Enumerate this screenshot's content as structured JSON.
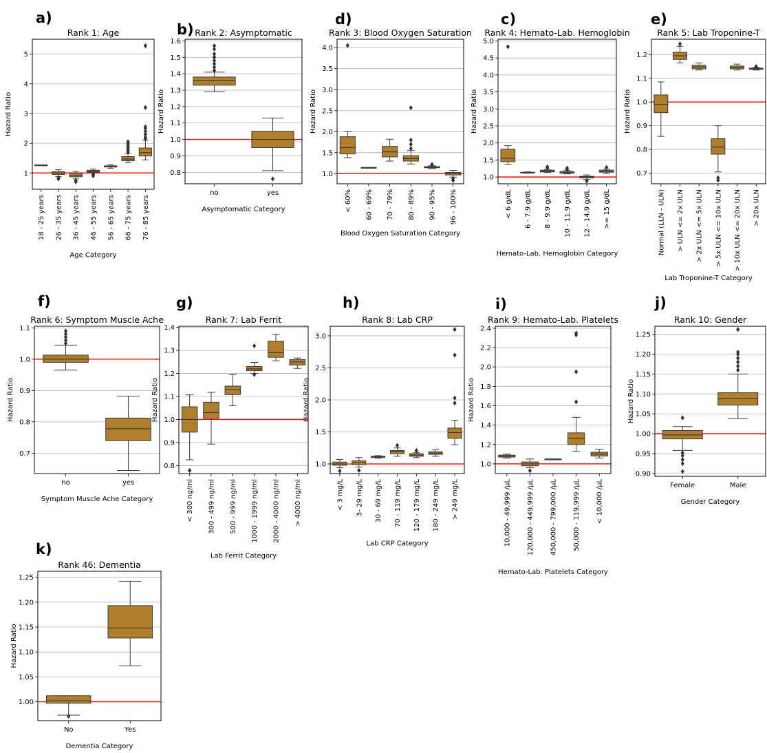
{
  "figure": {
    "colors": {
      "box": "#b07f2c",
      "whisker": "#3a3a3a",
      "reference": "#ff0000",
      "grid": "#b0b0b0"
    },
    "ylabel": "Hazard Ratio"
  },
  "chart_data": [
    {
      "type": "box",
      "letter": "a)",
      "title": "Rank 1: Age",
      "xlabel": "Age Category",
      "ylabel": "Hazard Ratio",
      "ylim": [
        0.45,
        5.5
      ],
      "yticks": [
        1,
        2,
        3,
        4,
        5
      ],
      "ytick_labels": [
        "1",
        "2",
        "3",
        "4",
        "5"
      ],
      "reference_line": 1.0,
      "categories": [
        "18 - 25 years",
        "26 - 35 years",
        "36 - 45 years",
        "46 - 55 years",
        "56 - 65 years",
        "66 - 75 years",
        "76 - 85 years"
      ],
      "boxes": [
        {
          "whislo": 1.25,
          "q1": 1.25,
          "med": 1.26,
          "q3": 1.27,
          "whishi": 1.27,
          "fliers": []
        },
        {
          "whislo": 0.88,
          "q1": 0.95,
          "med": 1.0,
          "q3": 1.04,
          "whishi": 1.11,
          "fliers": [
            0.8,
            0.83
          ]
        },
        {
          "whislo": 0.8,
          "q1": 0.87,
          "med": 0.92,
          "q3": 0.99,
          "whishi": 1.05,
          "fliers": [
            0.7,
            0.74
          ]
        },
        {
          "whislo": 1.0,
          "q1": 1.03,
          "med": 1.06,
          "q3": 1.09,
          "whishi": 1.13,
          "fliers": [
            0.9,
            0.95
          ]
        },
        {
          "whislo": 1.16,
          "q1": 1.2,
          "med": 1.22,
          "q3": 1.24,
          "whishi": 1.27,
          "fliers": []
        },
        {
          "whislo": 1.35,
          "q1": 1.41,
          "med": 1.47,
          "q3": 1.55,
          "whishi": 1.65,
          "fliers": [
            1.7,
            1.75,
            1.8,
            1.85,
            1.9,
            1.95,
            2.0,
            2.05
          ]
        },
        {
          "whislo": 1.44,
          "q1": 1.57,
          "med": 1.68,
          "q3": 1.84,
          "whishi": 2.1,
          "fliers": [
            2.15,
            2.2,
            2.3,
            2.4,
            2.5,
            2.55,
            3.2,
            5.28
          ]
        }
      ]
    },
    {
      "type": "box",
      "letter": "b)",
      "title": "Rank 2: Asymptomatic",
      "xlabel": "Asymptomatic Category",
      "ylabel": "Hazard Ratio",
      "ylim": [
        0.73,
        1.61
      ],
      "yticks": [
        0.8,
        0.9,
        1.0,
        1.1,
        1.2,
        1.3,
        1.4,
        1.5,
        1.6
      ],
      "ytick_labels": [
        "0.8",
        "0.9",
        "1.0",
        "1.1",
        "1.2",
        "1.3",
        "1.4",
        "1.5",
        "1.6"
      ],
      "reference_line": 1.0,
      "categories": [
        "no",
        "yes"
      ],
      "boxes": [
        {
          "whislo": 1.29,
          "q1": 1.33,
          "med": 1.36,
          "q3": 1.38,
          "whishi": 1.41,
          "fliers": [
            1.42,
            1.44,
            1.46,
            1.48,
            1.5,
            1.52,
            1.55,
            1.57
          ]
        },
        {
          "whislo": 0.81,
          "q1": 0.95,
          "med": 1.0,
          "q3": 1.05,
          "whishi": 1.13,
          "fliers": [
            0.76
          ]
        }
      ]
    },
    {
      "type": "box",
      "letter": "d)",
      "title": "Rank 3: Blood Oxygen Saturation",
      "xlabel": "Blood Oxygen Saturation Category",
      "ylabel": "Hazard Ratio",
      "ylim": [
        0.76,
        4.2
      ],
      "yticks": [
        1.0,
        1.5,
        2.0,
        2.5,
        3.0,
        3.5,
        4.0
      ],
      "ytick_labels": [
        "1.0",
        "1.5",
        "2.0",
        "2.5",
        "3.0",
        "3.5",
        "4.0"
      ],
      "reference_line": 1.0,
      "categories": [
        "< 60%",
        "60 - 69%",
        "70 - 79%",
        "80 - 89%",
        "90 - 95%",
        "96 - 100%"
      ],
      "boxes": [
        {
          "whislo": 1.38,
          "q1": 1.47,
          "med": 1.62,
          "q3": 1.88,
          "whishi": 2.0,
          "fliers": [
            4.05
          ]
        },
        {
          "whislo": 1.13,
          "q1": 1.13,
          "med": 1.14,
          "q3": 1.15,
          "whishi": 1.15,
          "fliers": []
        },
        {
          "whislo": 1.3,
          "q1": 1.4,
          "med": 1.52,
          "q3": 1.65,
          "whishi": 1.82,
          "fliers": []
        },
        {
          "whislo": 1.23,
          "q1": 1.3,
          "med": 1.36,
          "q3": 1.43,
          "whishi": 1.55,
          "fliers": [
            1.6,
            1.7,
            1.8,
            2.57
          ]
        },
        {
          "whislo": 1.12,
          "q1": 1.14,
          "med": 1.15,
          "q3": 1.17,
          "whishi": 1.19,
          "fliers": [
            1.22
          ]
        },
        {
          "whislo": 0.92,
          "q1": 0.97,
          "med": 1.0,
          "q3": 1.03,
          "whishi": 1.08,
          "fliers": [
            0.84,
            0.88
          ]
        }
      ]
    },
    {
      "type": "box",
      "letter": "c)",
      "title": "Rank 4: Hemato-Lab. Hemoglobin",
      "xlabel": "Hemato-Lab. Hemoglobin Category",
      "ylabel": "Hazard Ratio",
      "ylim": [
        0.8,
        5.05
      ],
      "yticks": [
        1.0,
        1.5,
        2.0,
        2.5,
        3.0,
        3.5,
        4.0,
        4.5,
        5.0
      ],
      "ytick_labels": [
        "1.0",
        "1.5",
        "2.0",
        "2.5",
        "3.0",
        "3.5",
        "4.0",
        "4.5",
        "5.0"
      ],
      "reference_line": 1.0,
      "categories": [
        "< 6 g/dL",
        "6 - 7.9 g/dL",
        "8 - 9.9 g/dL",
        "10 - 11.9 g/dL",
        "12 - 14.9 g/dL",
        ">= 15 g/dL"
      ],
      "boxes": [
        {
          "whislo": 1.37,
          "q1": 1.45,
          "med": 1.55,
          "q3": 1.82,
          "whishi": 1.92,
          "fliers": [
            4.83
          ]
        },
        {
          "whislo": 1.11,
          "q1": 1.12,
          "med": 1.13,
          "q3": 1.14,
          "whishi": 1.15,
          "fliers": []
        },
        {
          "whislo": 1.13,
          "q1": 1.15,
          "med": 1.17,
          "q3": 1.2,
          "whishi": 1.22,
          "fliers": [
            1.27,
            1.3
          ]
        },
        {
          "whislo": 1.09,
          "q1": 1.11,
          "med": 1.13,
          "q3": 1.16,
          "whishi": 1.19,
          "fliers": [
            1.22,
            1.26
          ]
        },
        {
          "whislo": 0.93,
          "q1": 0.97,
          "med": 1.0,
          "q3": 1.02,
          "whishi": 1.06,
          "fliers": [
            0.88
          ]
        },
        {
          "whislo": 1.1,
          "q1": 1.14,
          "med": 1.17,
          "q3": 1.2,
          "whishi": 1.23,
          "fliers": [
            1.28
          ]
        }
      ]
    },
    {
      "type": "box",
      "letter": "e)",
      "title": "Rank 5: Lab Troponine-T",
      "xlabel": "Lab Troponine-T Category",
      "ylabel": "Hazard Ratio",
      "ylim": [
        0.655,
        1.265
      ],
      "yticks": [
        0.7,
        0.8,
        0.9,
        1.0,
        1.1,
        1.2
      ],
      "ytick_labels": [
        "0.7",
        "0.8",
        "0.9",
        "1.0",
        "1.1",
        "1.2"
      ],
      "reference_line": 1.0,
      "categories": [
        "Normal  (LLN - ULN)",
        "> ULN <= 2x ULN",
        "> 2x ULN <= 5x ULN",
        "> 5x ULN <= 10x ULN",
        "> 10x ULN <= 20x ULN",
        "> 20x ULN"
      ],
      "boxes": [
        {
          "whislo": 0.855,
          "q1": 0.955,
          "med": 0.99,
          "q3": 1.03,
          "whishi": 1.085,
          "fliers": []
        },
        {
          "whislo": 1.165,
          "q1": 1.18,
          "med": 1.195,
          "q3": 1.21,
          "whishi": 1.235,
          "fliers": [
            1.245
          ]
        },
        {
          "whislo": 1.135,
          "q1": 1.14,
          "med": 1.148,
          "q3": 1.155,
          "whishi": 1.165,
          "fliers": []
        },
        {
          "whislo": 0.705,
          "q1": 0.78,
          "med": 0.81,
          "q3": 0.845,
          "whishi": 0.9,
          "fliers": [
            0.67,
            0.68
          ]
        },
        {
          "whislo": 1.135,
          "q1": 1.14,
          "med": 1.145,
          "q3": 1.152,
          "whishi": 1.16,
          "fliers": []
        },
        {
          "whislo": 1.135,
          "q1": 1.138,
          "med": 1.14,
          "q3": 1.143,
          "whishi": 1.146,
          "fliers": [
            1.15
          ]
        }
      ]
    },
    {
      "type": "box",
      "letter": "f)",
      "title": "Rank 6: Symptom Muscle Ache",
      "xlabel": "Symptom Muscle Ache Category",
      "ylabel": "Hazard Ratio",
      "ylim": [
        0.635,
        1.105
      ],
      "yticks": [
        0.7,
        0.8,
        0.9,
        1.0,
        1.1
      ],
      "ytick_labels": [
        "0.7",
        "0.8",
        "0.9",
        "1.0",
        "1.1"
      ],
      "reference_line": 1.0,
      "categories": [
        "no",
        "yes"
      ],
      "boxes": [
        {
          "whislo": 0.965,
          "q1": 0.99,
          "med": 1.0,
          "q3": 1.013,
          "whishi": 1.045,
          "fliers": [
            1.05,
            1.06,
            1.07,
            1.08,
            1.09
          ]
        },
        {
          "whislo": 0.645,
          "q1": 0.74,
          "med": 0.778,
          "q3": 0.812,
          "whishi": 0.882,
          "fliers": []
        }
      ]
    },
    {
      "type": "box",
      "letter": "g)",
      "title": "Rank 7: Lab Ferrit",
      "xlabel": "Lab Ferrit Category",
      "ylabel": "Hazard Ratio",
      "ylim": [
        0.765,
        1.405
      ],
      "yticks": [
        0.8,
        0.9,
        1.0,
        1.1,
        1.2,
        1.3,
        1.4
      ],
      "ytick_labels": [
        "0.8",
        "0.9",
        "1.0",
        "1.1",
        "1.2",
        "1.3",
        "1.4"
      ],
      "reference_line": 1.0,
      "categories": [
        "< 300 ng/ml",
        "300 - 499 ng/ml",
        "500 - 999 ng/ml",
        "1000 - 1999 ng/ml",
        "2000 - 4000 ng/ml",
        "> 4000 ng/ml"
      ],
      "boxes": [
        {
          "whislo": 0.825,
          "q1": 0.945,
          "med": 1.0,
          "q3": 1.055,
          "whishi": 1.107,
          "fliers": [
            0.778
          ]
        },
        {
          "whislo": 0.893,
          "q1": 1.005,
          "med": 1.03,
          "q3": 1.075,
          "whishi": 1.118,
          "fliers": []
        },
        {
          "whislo": 1.06,
          "q1": 1.108,
          "med": 1.13,
          "q3": 1.145,
          "whishi": 1.195,
          "fliers": []
        },
        {
          "whislo": 1.2,
          "q1": 1.212,
          "med": 1.22,
          "q3": 1.23,
          "whishi": 1.248,
          "fliers": [
            1.195,
            1.32
          ]
        },
        {
          "whislo": 1.255,
          "q1": 1.27,
          "med": 1.29,
          "q3": 1.34,
          "whishi": 1.37,
          "fliers": []
        },
        {
          "whislo": 1.222,
          "q1": 1.237,
          "med": 1.25,
          "q3": 1.26,
          "whishi": 1.267,
          "fliers": []
        }
      ]
    },
    {
      "type": "box",
      "letter": "h)",
      "title": "Rank 8: Lab CRP",
      "xlabel": "Lab CRP Category",
      "ylabel": "Hazard Ratio",
      "ylim": [
        0.85,
        3.15
      ],
      "yticks": [
        1.0,
        1.5,
        2.0,
        2.5,
        3.0
      ],
      "ytick_labels": [
        "1.0",
        "1.5",
        "2.0",
        "2.5",
        "3.0"
      ],
      "reference_line": 1.0,
      "categories": [
        "< 3 mg/L",
        "3- 29 mg/L",
        "30 - 69 mg/L",
        "70 - 119 mg/L",
        "120 - 179 mg/L",
        "180 - 249 mg/L",
        "> 249 mg/L"
      ],
      "boxes": [
        {
          "whislo": 0.94,
          "q1": 0.98,
          "med": 1.0,
          "q3": 1.03,
          "whishi": 1.07,
          "fliers": [
            0.89
          ]
        },
        {
          "whislo": 0.95,
          "q1": 0.99,
          "med": 1.02,
          "q3": 1.05,
          "whishi": 1.1,
          "fliers": [
            0.9
          ]
        },
        {
          "whislo": 1.09,
          "q1": 1.1,
          "med": 1.11,
          "q3": 1.12,
          "whishi": 1.13,
          "fliers": []
        },
        {
          "whislo": 1.12,
          "q1": 1.16,
          "med": 1.19,
          "q3": 1.21,
          "whishi": 1.25,
          "fliers": [
            1.29
          ]
        },
        {
          "whislo": 1.1,
          "q1": 1.12,
          "med": 1.14,
          "q3": 1.16,
          "whishi": 1.18,
          "fliers": [
            1.21
          ]
        },
        {
          "whislo": 1.12,
          "q1": 1.15,
          "med": 1.17,
          "q3": 1.19,
          "whishi": 1.22,
          "fliers": []
        },
        {
          "whislo": 1.3,
          "q1": 1.4,
          "med": 1.49,
          "q3": 1.56,
          "whishi": 1.68,
          "fliers": [
            1.95,
            2.03,
            2.7,
            3.1
          ]
        }
      ]
    },
    {
      "type": "box",
      "letter": "i)",
      "title": "Rank 9: Hemato-Lab. Platelets",
      "xlabel": "Hemato-Lab. Platelets Category",
      "ylabel": "Hazard Ratio",
      "ylim": [
        0.9,
        2.42
      ],
      "yticks": [
        1.0,
        1.2,
        1.4,
        1.6,
        1.8,
        2.0,
        2.2,
        2.4
      ],
      "ytick_labels": [
        "1.0",
        "1.2",
        "1.4",
        "1.6",
        "1.8",
        "2.0",
        "2.2",
        "2.4"
      ],
      "reference_line": 1.0,
      "categories": [
        "10,000 - 49,999 /µL",
        "120,000 - 449,999 /µL",
        "450,000 - 799,000 /µL",
        "50,000 - 119,999 /µL",
        "< 10,000 /µL"
      ],
      "boxes": [
        {
          "whislo": 1.06,
          "q1": 1.07,
          "med": 1.08,
          "q3": 1.09,
          "whishi": 1.1,
          "fliers": []
        },
        {
          "whislo": 0.96,
          "q1": 0.98,
          "med": 1.0,
          "q3": 1.02,
          "whishi": 1.05,
          "fliers": [
            0.93
          ]
        },
        {
          "whislo": 1.05,
          "q1": 1.05,
          "med": 1.05,
          "q3": 1.05,
          "whishi": 1.05,
          "fliers": []
        },
        {
          "whislo": 1.13,
          "q1": 1.2,
          "med": 1.26,
          "q3": 1.32,
          "whishi": 1.48,
          "fliers": [
            1.64,
            1.95,
            2.33,
            2.35
          ]
        },
        {
          "whislo": 1.06,
          "q1": 1.08,
          "med": 1.1,
          "q3": 1.12,
          "whishi": 1.15,
          "fliers": []
        }
      ]
    },
    {
      "type": "box",
      "letter": "j)",
      "title": "Rank 10: Gender",
      "xlabel": "Gender Category",
      "ylabel": "Hazard Ratio",
      "ylim": [
        0.893,
        1.27
      ],
      "yticks": [
        0.9,
        0.95,
        1.0,
        1.05,
        1.1,
        1.15,
        1.2,
        1.25
      ],
      "ytick_labels": [
        "0.90",
        "0.95",
        "1.00",
        "1.05",
        "1.10",
        "1.15",
        "1.20",
        "1.25"
      ],
      "reference_line": 1.0,
      "categories": [
        "Female",
        "Male"
      ],
      "boxes": [
        {
          "whislo": 0.958,
          "q1": 0.987,
          "med": 0.997,
          "q3": 1.008,
          "whishi": 1.018,
          "fliers": [
            0.905,
            0.925,
            0.935,
            0.945,
            0.952,
            1.04
          ]
        },
        {
          "whislo": 1.038,
          "q1": 1.072,
          "med": 1.088,
          "q3": 1.103,
          "whishi": 1.15,
          "fliers": [
            1.16,
            1.17,
            1.18,
            1.19,
            1.2,
            1.205,
            1.262
          ]
        }
      ]
    },
    {
      "type": "box",
      "letter": "k)",
      "title": "Rank 46: Dementia",
      "xlabel": "Dementia Category",
      "ylabel": "Hazard Ratio",
      "ylim": [
        0.962,
        1.262
      ],
      "yticks": [
        1.0,
        1.05,
        1.1,
        1.15,
        1.2,
        1.25
      ],
      "ytick_labels": [
        "1.00",
        "1.05",
        "1.10",
        "1.15",
        "1.20",
        "1.25"
      ],
      "reference_line": 1.0,
      "categories": [
        "No",
        "Yes"
      ],
      "boxes": [
        {
          "whislo": 0.973,
          "q1": 0.997,
          "med": 1.002,
          "q3": 1.012,
          "whishi": 1.012,
          "fliers": [
            0.971
          ]
        },
        {
          "whislo": 1.072,
          "q1": 1.128,
          "med": 1.148,
          "q3": 1.193,
          "whishi": 1.242,
          "fliers": []
        }
      ]
    }
  ]
}
